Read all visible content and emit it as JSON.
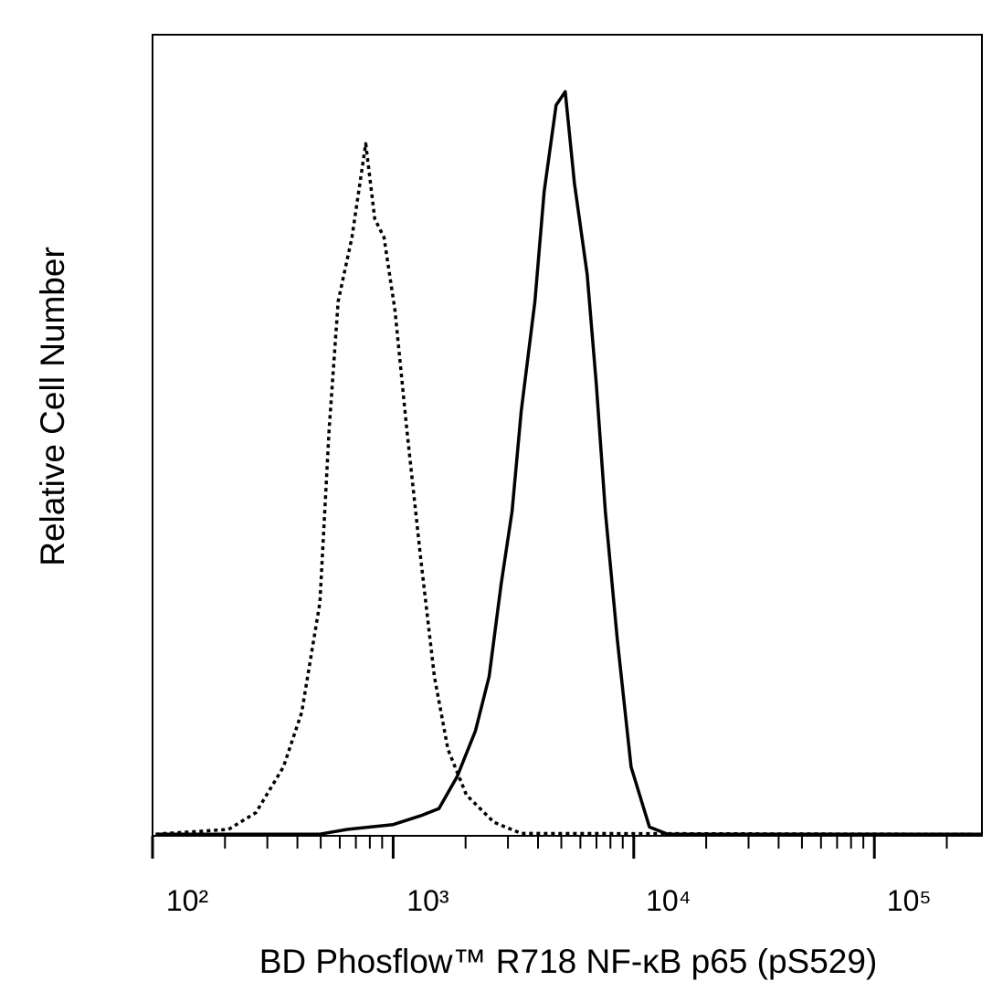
{
  "chart_data": {
    "type": "line",
    "x_label": "BD Phosflow™ R718 NF-κB p65 (pS529)",
    "y_label": "Relative Cell Number",
    "xlog": true,
    "xlim": [
      100,
      280000
    ],
    "ylim": [
      0,
      100
    ],
    "xticks": [
      {
        "value": 100,
        "label": "10²"
      },
      {
        "value": 1000,
        "label": "10³"
      },
      {
        "value": 10000,
        "label": "10⁴"
      },
      {
        "value": 100000,
        "label": "10⁵"
      }
    ],
    "xminorticks": [
      200,
      300,
      400,
      500,
      600,
      700,
      800,
      900,
      2000,
      3000,
      4000,
      5000,
      6000,
      7000,
      8000,
      9000,
      20000,
      30000,
      40000,
      50000,
      60000,
      70000,
      80000,
      90000,
      200000
    ],
    "series": [
      {
        "color": "#000000",
        "style": "dotted",
        "x": [
          103,
          207,
          269,
          350,
          417,
          496,
          542,
          591,
          674,
          769,
          839,
          916,
          1018,
          1140,
          1300,
          1483,
          1690,
          2015,
          2620,
          3405,
          280000
        ],
        "values": [
          0.2,
          0.8,
          2.9,
          8.6,
          15.4,
          29.1,
          50.7,
          66.7,
          74.7,
          86.4,
          77.0,
          74.7,
          65.6,
          50.7,
          34.8,
          19.9,
          10.8,
          5.1,
          1.7,
          0.3,
          0.2
        ]
      },
      {
        "color": "#000000",
        "style": "solid",
        "x": [
          103,
          496,
          645,
          1000,
          1300,
          1549,
          1845,
          2198,
          2506,
          2810,
          3120,
          3405,
          3882,
          4240,
          4755,
          5190,
          5665,
          6400,
          6985,
          7620,
          8545,
          9750,
          11620,
          13840,
          280000
        ],
        "values": [
          0.2,
          0.2,
          0.8,
          1.4,
          2.5,
          3.4,
          7.4,
          13.1,
          19.9,
          31.4,
          40.5,
          53.0,
          66.7,
          80.4,
          91.2,
          92.9,
          81.5,
          70.1,
          56.4,
          40.5,
          24.5,
          8.6,
          1.1,
          0.2,
          0.2
        ]
      }
    ]
  }
}
